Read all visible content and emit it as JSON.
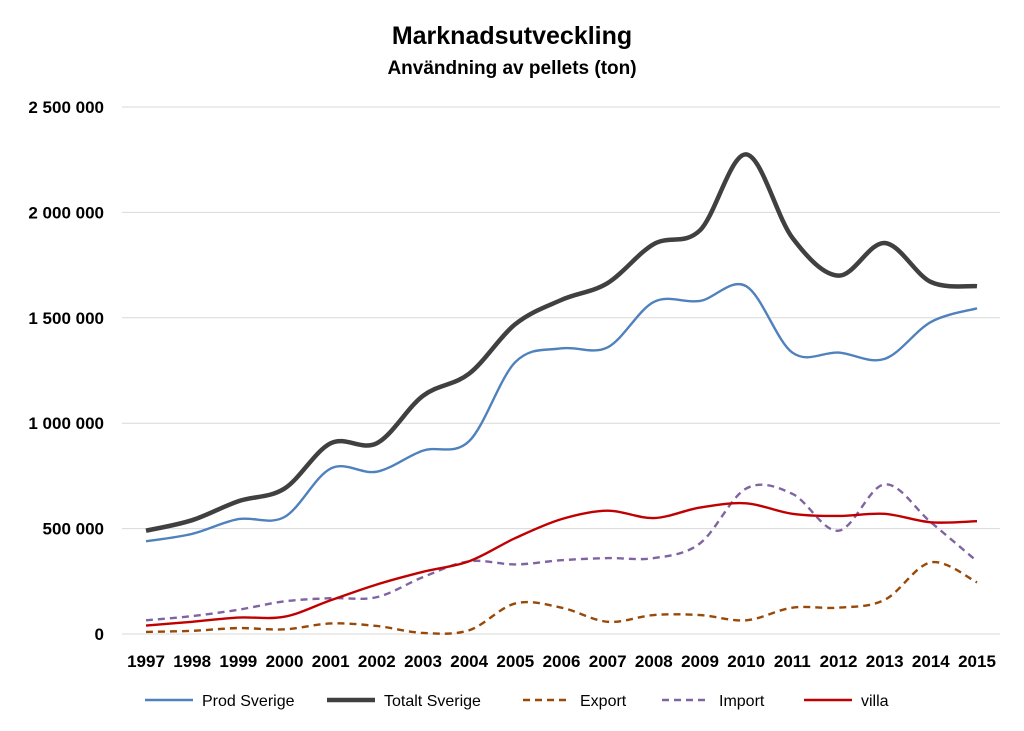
{
  "chart_data": {
    "type": "line",
    "title": "Marknadsutveckling",
    "subtitle": "Användning av pellets (ton)",
    "xlabel": "",
    "ylabel": "",
    "ylim": [
      0,
      2500000
    ],
    "yticks": [
      0,
      500000,
      1000000,
      1500000,
      2000000,
      2500000
    ],
    "ytick_labels": [
      "0",
      "500 000",
      "1 000 000",
      "1 500 000",
      "2 000 000",
      "2 500 000"
    ],
    "grid": true,
    "legend_position": "bottom",
    "categories": [
      "1997",
      "1998",
      "1999",
      "2000",
      "2001",
      "2002",
      "2003",
      "2004",
      "2005",
      "2006",
      "2007",
      "2008",
      "2009",
      "2010",
      "2011",
      "2012",
      "2013",
      "2014",
      "2015"
    ],
    "series": [
      {
        "name": "Prod Sverige",
        "color": "#4f81bd",
        "dash": "solid",
        "width": "medium",
        "values": [
          440000,
          475000,
          545000,
          555000,
          785000,
          770000,
          870000,
          915000,
          1290000,
          1355000,
          1360000,
          1575000,
          1580000,
          1650000,
          1335000,
          1335000,
          1305000,
          1480000,
          1545000
        ]
      },
      {
        "name": "Totalt  Sverige",
        "color": "#404040",
        "dash": "solid",
        "width": "thick",
        "values": [
          490000,
          540000,
          630000,
          690000,
          905000,
          905000,
          1130000,
          1235000,
          1470000,
          1585000,
          1665000,
          1850000,
          1915000,
          2275000,
          1880000,
          1700000,
          1855000,
          1670000,
          1650000
        ]
      },
      {
        "name": "Export",
        "color": "#984807",
        "dash": "dashed",
        "width": "medium",
        "values": [
          10000,
          15000,
          28000,
          22000,
          50000,
          38000,
          5000,
          18000,
          145000,
          125000,
          58000,
          90000,
          90000,
          65000,
          125000,
          125000,
          162000,
          340000,
          245000
        ]
      },
      {
        "name": "Import",
        "color": "#8064a2",
        "dash": "dashed",
        "width": "medium",
        "values": [
          65000,
          85000,
          115000,
          155000,
          170000,
          175000,
          270000,
          345000,
          330000,
          350000,
          360000,
          360000,
          430000,
          690000,
          665000,
          490000,
          710000,
          530000,
          345000
        ]
      },
      {
        "name": "villa",
        "color": "#c00000",
        "dash": "solid",
        "width": "medium",
        "values": [
          40000,
          58000,
          78000,
          82000,
          160000,
          235000,
          295000,
          345000,
          455000,
          545000,
          585000,
          550000,
          600000,
          620000,
          570000,
          560000,
          570000,
          530000,
          535000
        ]
      }
    ]
  }
}
